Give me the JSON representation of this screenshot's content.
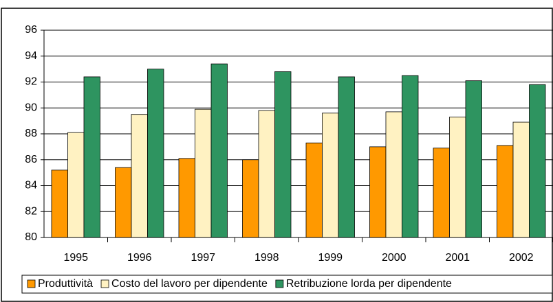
{
  "chart_data": {
    "type": "bar",
    "categories": [
      "1995",
      "1996",
      "1997",
      "1998",
      "1999",
      "2000",
      "2001",
      "2002"
    ],
    "series": [
      {
        "name": "Produttività",
        "color": "#ff9900",
        "values": [
          85.2,
          85.4,
          86.1,
          86.0,
          87.3,
          87.0,
          86.9,
          87.1
        ]
      },
      {
        "name": "Costo del lavoro per dipendente",
        "color": "#fff2c2",
        "values": [
          88.1,
          89.5,
          89.9,
          89.8,
          89.6,
          89.7,
          89.3,
          88.9
        ]
      },
      {
        "name": "Retribuzione lorda per dipendente",
        "color": "#2e9460",
        "values": [
          92.4,
          93.0,
          93.4,
          92.8,
          92.4,
          92.5,
          92.1,
          91.8
        ]
      }
    ],
    "ylim": [
      80,
      96
    ],
    "yticks": [
      80,
      82,
      84,
      86,
      88,
      90,
      92,
      94,
      96
    ],
    "grid": true,
    "legend": "bottom"
  }
}
